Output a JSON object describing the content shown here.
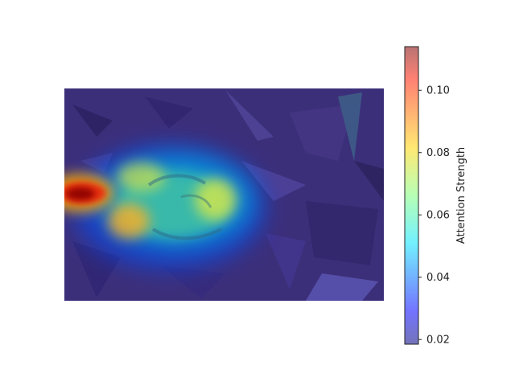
{
  "chart_data": {
    "type": "heatmap",
    "title": "",
    "colormap": "jet",
    "overlay_alpha": 0.5,
    "background": "dark leaf-litter photograph",
    "colorbar": {
      "label": "Attention Strength",
      "range": [
        0.0185,
        0.114
      ],
      "ticks": [
        0.02,
        0.04,
        0.06,
        0.08,
        0.1
      ],
      "tick_labels": [
        "0.02",
        "0.04",
        "0.06",
        "0.08",
        "0.10"
      ],
      "placement": "right"
    },
    "grid": false,
    "hotspots": [
      {
        "region": "far left, middle",
        "value": 0.112
      },
      {
        "region": "center-left, lower",
        "value": 0.085
      },
      {
        "region": "center-left, upper",
        "value": 0.078
      },
      {
        "region": "center, right part of body",
        "value": 0.077
      },
      {
        "region": "central body",
        "value": 0.06
      },
      {
        "region": "elsewhere",
        "value": 0.02
      }
    ]
  }
}
